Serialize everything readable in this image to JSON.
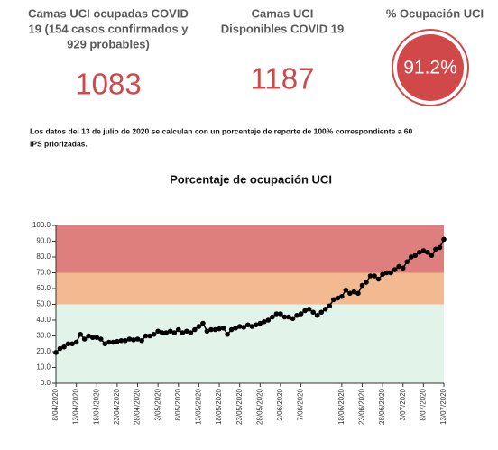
{
  "kpis": [
    {
      "title": [
        "Camas UCI ocupadas COVID",
        "19 (154 casos confirmados y",
        "929 probables)"
      ],
      "value": 1083
    },
    {
      "title": [
        "Camas UCI",
        "Disponibles COVID 19"
      ],
      "value": 1187
    },
    {
      "title": [
        "% Ocupación UCI"
      ],
      "value": "91.2%"
    }
  ],
  "note": [
    "Los datos del 13 de julio de 2020 se calculan con un porcentaje de reporte de 100% correspondiente a 60",
    "IPS  priorizadas."
  ],
  "chart_data": {
    "type": "line",
    "title": "Porcentaje de ocupación UCI",
    "color": "#000000",
    "categories": [
      "8/04/2020",
      null,
      null,
      null,
      null,
      "13/04/2020",
      null,
      null,
      null,
      null,
      "18/04/2020",
      null,
      null,
      null,
      null,
      "23/04/2020",
      null,
      null,
      null,
      null,
      "28/04/2020",
      null,
      null,
      null,
      null,
      "3/05/2020",
      null,
      null,
      null,
      null,
      "8/05/2020",
      null,
      null,
      null,
      null,
      "13/05/2020",
      null,
      null,
      null,
      null,
      "18/05/2020",
      null,
      null,
      null,
      null,
      "23/05/2020",
      null,
      null,
      null,
      null,
      "28/05/2020",
      null,
      null,
      null,
      null,
      "2/06/2020",
      null,
      null,
      null,
      null,
      "7/06/2020",
      null,
      null,
      null,
      null,
      null,
      null,
      null,
      null,
      null,
      "18/06/2020",
      null,
      null,
      null,
      null,
      "23/06/2020",
      null,
      null,
      null,
      null,
      "28/06/2020",
      null,
      null,
      null,
      null,
      "3/07/2020",
      null,
      null,
      null,
      null,
      "8/07/2020",
      null,
      null,
      null,
      null,
      "13/07/2020"
    ],
    "values": [
      19.5,
      22,
      23,
      25,
      25,
      26,
      31,
      28,
      30,
      29,
      29,
      28,
      25,
      26,
      26,
      26.5,
      27,
      27,
      28,
      27.5,
      28,
      27,
      30,
      30,
      31,
      33,
      32,
      32,
      33,
      32,
      34,
      32,
      33,
      32,
      34,
      36,
      38,
      33,
      34,
      34,
      34.5,
      35,
      31,
      34,
      35,
      36,
      35.5,
      37,
      36,
      37,
      38,
      39,
      40,
      42,
      44,
      44,
      42,
      42,
      41,
      43,
      44,
      46,
      47,
      45,
      43,
      45,
      47,
      49,
      53,
      54,
      55,
      59,
      57,
      58,
      57,
      62,
      64,
      68,
      68,
      66,
      69,
      70,
      70,
      72,
      74,
      73,
      77,
      80,
      81,
      83,
      84,
      83,
      81,
      85,
      86,
      91.2
    ],
    "ylim": [
      0,
      100
    ],
    "yticks": [
      {
        "value": 0,
        "label": "0.0"
      },
      {
        "value": 10,
        "label": "10.0"
      },
      {
        "value": 20,
        "label": "20.0"
      },
      {
        "value": 30,
        "label": "30.0"
      },
      {
        "value": 40,
        "label": "40.0"
      },
      {
        "value": 50,
        "label": "50.0"
      },
      {
        "value": 60,
        "label": "60.0"
      },
      {
        "value": 70,
        "label": "70.0"
      },
      {
        "value": 80,
        "label": "80.0"
      },
      {
        "value": 90,
        "label": "90.0"
      },
      {
        "value": 100,
        "label": "100.0"
      }
    ],
    "bands": [
      {
        "from": 0,
        "to": 50,
        "color": "#e2f3e9"
      },
      {
        "from": 50,
        "to": 70,
        "color": "#f3ba92"
      },
      {
        "from": 70,
        "to": 100,
        "color": "#de7f7e"
      }
    ]
  }
}
